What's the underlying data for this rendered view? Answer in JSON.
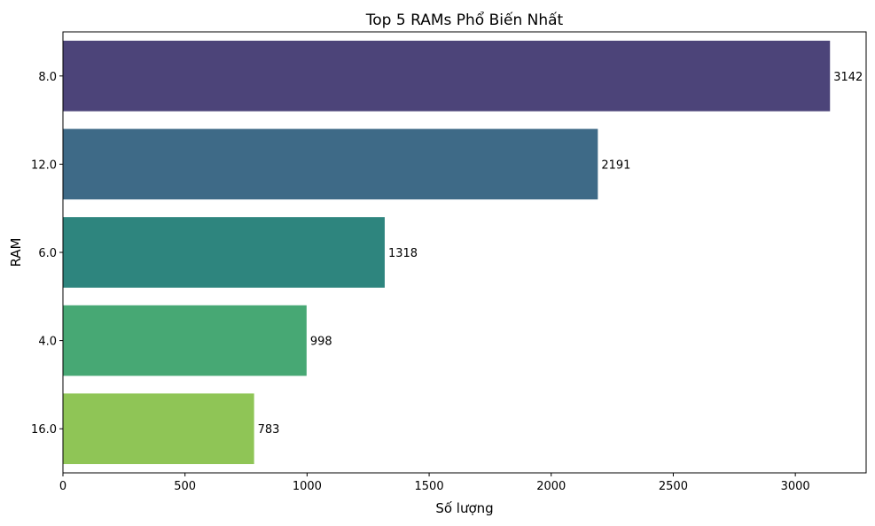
{
  "chart_data": {
    "type": "bar",
    "orientation": "horizontal",
    "title": "Top 5 RAMs Phổ Biến Nhất",
    "xlabel": "Số lượng",
    "ylabel": "RAM",
    "categories": [
      "8.0",
      "12.0",
      "6.0",
      "4.0",
      "16.0"
    ],
    "values": [
      3142,
      2191,
      1318,
      998,
      783
    ],
    "data_labels": [
      "3142",
      "2191",
      "1318",
      "998",
      "783"
    ],
    "colors": [
      "#4c4479",
      "#3e6a87",
      "#2e857e",
      "#47a874",
      "#8fc556"
    ],
    "xlim": [
      0,
      3290
    ],
    "xticks": [
      0,
      500,
      1000,
      1500,
      2000,
      2500,
      3000
    ],
    "xtick_labels": [
      "0",
      "500",
      "1000",
      "1500",
      "2000",
      "2500",
      "3000"
    ],
    "grid": false,
    "legend": "none"
  }
}
